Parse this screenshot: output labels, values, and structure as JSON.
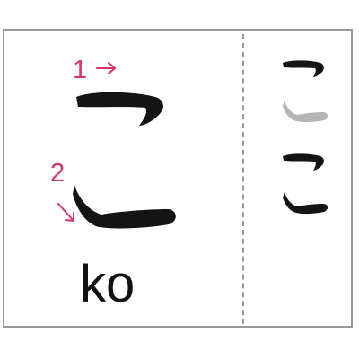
{
  "card": {
    "romaji": "ko",
    "stroke_numbers": [
      "1",
      "2"
    ],
    "colors": {
      "ink": "#141414",
      "accent": "#d6336c",
      "faded": "#b5b5b5",
      "border": "#9a9a9a"
    },
    "icons": {
      "stroke_1_arrow": "arrow-right-icon",
      "stroke_2_arrow": "arrow-down-right-icon"
    }
  }
}
